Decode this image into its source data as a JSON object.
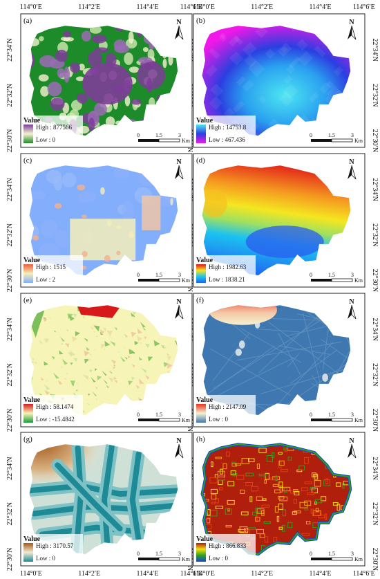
{
  "axes": {
    "lon_ticks": [
      "114°0′E",
      "114°2′E",
      "114°4′E",
      "114°6′E"
    ],
    "lat_ticks": [
      "22°34′N",
      "22°32′N",
      "22°30′N"
    ]
  },
  "north_label": "N",
  "scale_bar": {
    "ticks": [
      "0",
      "1.5",
      "3"
    ],
    "unit": "Km"
  },
  "legend_title": "Value",
  "panels": [
    {
      "letter": "(a)",
      "high": "High : 877566",
      "low": "Low : 0",
      "ramp": [
        "#7d3c98",
        "#f4f1d0",
        "#1e8b2a"
      ],
      "style": "a"
    },
    {
      "letter": "(b)",
      "high": "High : 14753.8",
      "low": "Low : 467.436",
      "ramp": [
        "#4de6f2",
        "#2b3ee0",
        "#f018e8"
      ],
      "style": "b"
    },
    {
      "letter": "(c)",
      "high": "High : 1515",
      "low": "Low : 2",
      "ramp": [
        "#f05a3a",
        "#f4efb8",
        "#82aefc"
      ],
      "style": "c"
    },
    {
      "letter": "(d)",
      "high": "High : 1982.63",
      "low": "Low : 1838.21",
      "ramp": [
        "#e0141a",
        "#f5e620",
        "#1cc2f0",
        "#2060f0"
      ],
      "style": "d"
    },
    {
      "letter": "(e)",
      "high": "High : 58.1474",
      "low": "Low : -15.4842",
      "ramp": [
        "#d7191c",
        "#f7f4b8",
        "#1a9a3a"
      ],
      "style": "e"
    },
    {
      "letter": "(f)",
      "high": "High : 2147.09",
      "low": "Low : 0",
      "ramp": [
        "#e8331e",
        "#f5f2d0",
        "#3f78b0"
      ],
      "style": "f"
    },
    {
      "letter": "(g)",
      "high": "High : 3170.57",
      "low": "Low : 0",
      "ramp": [
        "#a35a1c",
        "#f3ead0",
        "#1d8a96"
      ],
      "style": "g"
    },
    {
      "letter": "(h)",
      "high": "High : 866.833",
      "low": "Low : 0",
      "ramp": [
        "#b01e0c",
        "#f0e010",
        "#2aa020",
        "#1840e0"
      ],
      "style": "h"
    }
  ]
}
